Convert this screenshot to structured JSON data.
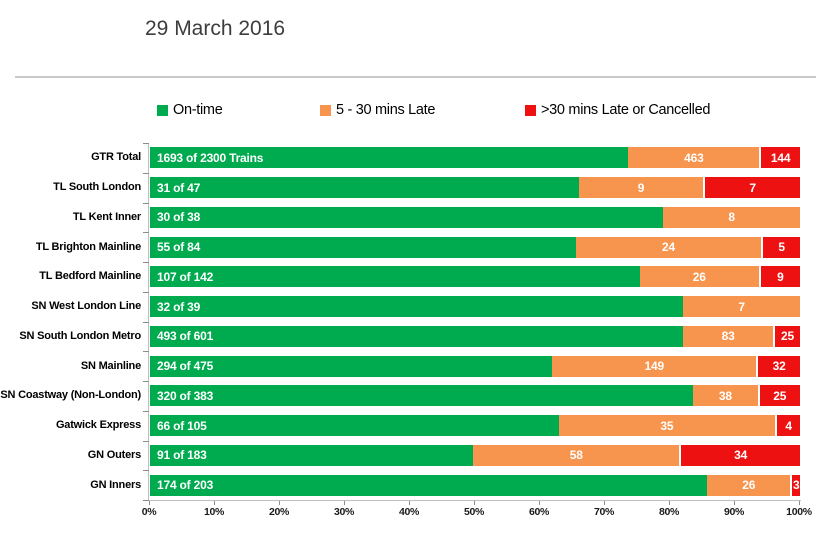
{
  "title": "29 March 2016",
  "legend": [
    {
      "label": "On-time"
    },
    {
      "label": "5 - 30 mins Late"
    },
    {
      "label": ">30 mins Late or Cancelled"
    }
  ],
  "chart_data": {
    "type": "bar",
    "orientation": "horizontal",
    "stacked": true,
    "title": "29 March 2016",
    "units": "trains; segment widths are percent of row total",
    "legend_position": "top",
    "grid": false,
    "categories": [
      "GTR Total",
      "TL South London",
      "TL Kent Inner",
      "TL Brighton Mainline",
      "TL Bedford Mainline",
      "SN West London Line",
      "SN South London Metro",
      "SN Mainline",
      "SN Coastway (Non-London)",
      "Gatwick Express",
      "GN Outers",
      "GN Inners"
    ],
    "totals": [
      2300,
      47,
      38,
      84,
      142,
      39,
      601,
      475,
      383,
      105,
      183,
      203
    ],
    "series": [
      {
        "name": "On-time",
        "color": "#00AB4F",
        "values": [
          1693,
          31,
          30,
          55,
          107,
          32,
          493,
          294,
          320,
          66,
          91,
          174
        ],
        "bar_labels": [
          "1693 of 2300 Trains",
          "31 of 47",
          "30 of 38",
          "55 of 84",
          "107 of 142",
          "32 of 39",
          "493 of 601",
          "294 of 475",
          "320 of 383",
          "66 of 105",
          "91 of 183",
          "174 of 203"
        ]
      },
      {
        "name": "5 - 30 mins Late",
        "color": "#F7944D",
        "values": [
          463,
          9,
          8,
          24,
          26,
          7,
          83,
          149,
          38,
          35,
          58,
          26
        ]
      },
      {
        "name": ">30 mins Late or Cancelled",
        "color": "#EE1111",
        "values": [
          144,
          7,
          0,
          5,
          9,
          0,
          25,
          32,
          25,
          4,
          34,
          3
        ]
      }
    ],
    "x_axis": {
      "tick_labels": [
        "0%",
        "10%",
        "20%",
        "30%",
        "40%",
        "50%",
        "60%",
        "70%",
        "80%",
        "90%",
        "100%"
      ],
      "range_percent": [
        0,
        100
      ]
    }
  }
}
